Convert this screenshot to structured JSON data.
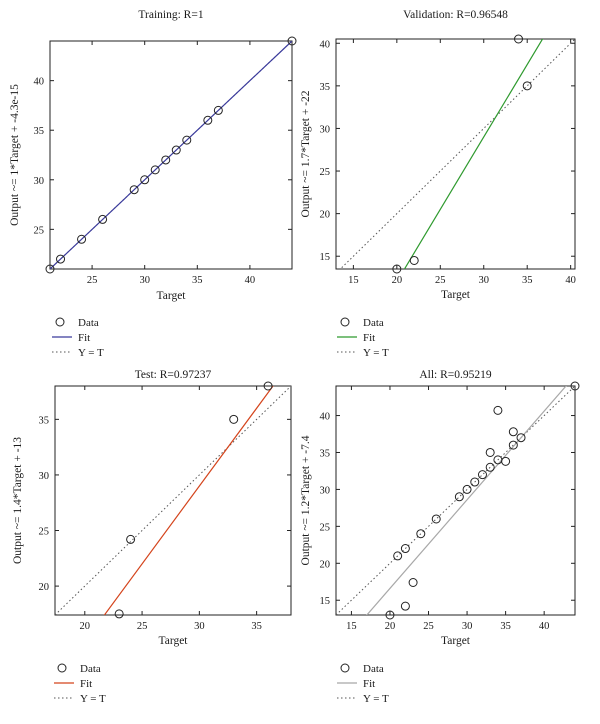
{
  "chart_data": [
    {
      "type": "scatter",
      "title": "Training: R=1",
      "xlabel": "Target",
      "ylabel": "Output ~= 1*Target + -4.3e-15",
      "xlim": [
        21,
        44
      ],
      "ylim": [
        21,
        44
      ],
      "xticks": [
        25,
        30,
        35,
        40
      ],
      "yticks": [
        25,
        30,
        35,
        40
      ],
      "grid": false,
      "fit_color": "#3a3a9c",
      "series": [
        {
          "name": "Data",
          "kind": "points",
          "x": [
            21,
            22,
            24,
            26,
            29,
            30,
            31,
            32,
            33,
            34,
            36,
            37,
            44
          ],
          "y": [
            21,
            22,
            24,
            26,
            29,
            30,
            31,
            32,
            33,
            34,
            36,
            37,
            44
          ]
        },
        {
          "name": "Fit",
          "kind": "line",
          "slope": 1,
          "intercept": 0
        },
        {
          "name": "Y = T",
          "kind": "identity"
        }
      ]
    },
    {
      "type": "scatter",
      "title": "Validation: R=0.96548",
      "xlabel": "Target",
      "ylabel": "Output ~= 1.7*Target + -22",
      "xlim": [
        13,
        40.5
      ],
      "ylim": [
        13.5,
        40.5
      ],
      "xticks": [
        15,
        20,
        25,
        30,
        35,
        40
      ],
      "yticks": [
        15,
        20,
        25,
        30,
        35,
        40
      ],
      "grid": false,
      "fit_color": "#2e9a2e",
      "series": [
        {
          "name": "Data",
          "kind": "points",
          "x": [
            20,
            22,
            34,
            35
          ],
          "y": [
            13.5,
            14.5,
            40.5,
            35
          ]
        },
        {
          "name": "Fit",
          "kind": "line",
          "slope": 1.7,
          "intercept": -22
        },
        {
          "name": "Y = T",
          "kind": "identity"
        }
      ]
    },
    {
      "type": "scatter",
      "title": "Test: R=0.97237",
      "xlabel": "Target",
      "ylabel": "Output ~= 1.4*Target + -13",
      "xlim": [
        17.4,
        38
      ],
      "ylim": [
        17.4,
        38
      ],
      "xticks": [
        20,
        25,
        30,
        35
      ],
      "yticks": [
        20,
        25,
        30,
        35
      ],
      "grid": false,
      "fit_color": "#d4441c",
      "series": [
        {
          "name": "Data",
          "kind": "points",
          "x": [
            23,
            24,
            33,
            36
          ],
          "y": [
            17.5,
            24.2,
            35,
            38
          ]
        },
        {
          "name": "Fit",
          "kind": "line",
          "slope": 1.4,
          "intercept": -13
        },
        {
          "name": "Y = T",
          "kind": "identity"
        }
      ]
    },
    {
      "type": "scatter",
      "title": "All: R=0.95219",
      "xlabel": "Target",
      "ylabel": "Output ~= 1.2*Target + -7.4",
      "xlim": [
        13,
        44
      ],
      "ylim": [
        13,
        44
      ],
      "xticks": [
        15,
        20,
        25,
        30,
        35,
        40
      ],
      "yticks": [
        15,
        20,
        25,
        30,
        35,
        40
      ],
      "grid": false,
      "fit_color": "#a8a8a8",
      "series": [
        {
          "name": "Data",
          "kind": "points",
          "x": [
            20,
            21,
            22,
            22,
            23,
            24,
            26,
            29,
            30,
            31,
            32,
            33,
            33,
            34,
            34,
            35,
            36,
            36,
            37,
            44
          ],
          "y": [
            13,
            21,
            14.2,
            22,
            17.4,
            24,
            26,
            29,
            30,
            31,
            32,
            33,
            35,
            34,
            40.7,
            33.8,
            36,
            37.8,
            37,
            44
          ]
        },
        {
          "name": "Fit",
          "kind": "line",
          "slope": 1.2,
          "intercept": -7.4
        },
        {
          "name": "Y = T",
          "kind": "identity"
        }
      ]
    }
  ]
}
